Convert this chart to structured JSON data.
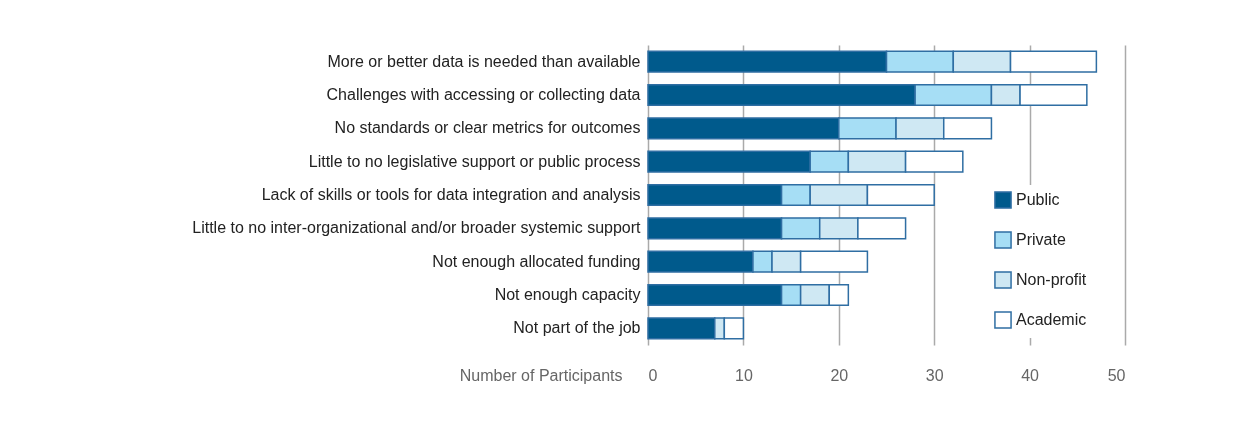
{
  "chart_data": {
    "type": "bar",
    "orientation": "horizontal",
    "stacked": true,
    "categories": [
      "More or better data is needed than available",
      "Challenges with accessing or collecting data",
      "No standards or clear metrics for outcomes",
      "Little to no legislative support or public process",
      "Lack of skills or tools for data integration and analysis",
      "Little to no inter-organizational and/or broader systemic support",
      "Not enough allocated funding",
      "Not enough capacity",
      "Not part of the job"
    ],
    "series": [
      {
        "name": "Public",
        "color": "#005a8c",
        "values": [
          25,
          28,
          20,
          17,
          14,
          14,
          11,
          14,
          7
        ]
      },
      {
        "name": "Private",
        "color": "#a6def5",
        "values": [
          7,
          8,
          6,
          4,
          3,
          4,
          2,
          2,
          0
        ]
      },
      {
        "name": "Non-profit",
        "color": "#cfe8f3",
        "values": [
          6,
          3,
          5,
          6,
          6,
          4,
          3,
          3,
          1
        ]
      },
      {
        "name": "Academic",
        "color": "#ffffff",
        "values": [
          9,
          7,
          5,
          6,
          7,
          5,
          7,
          2,
          2
        ]
      }
    ],
    "xlabel": "Number of Participants",
    "xlim": [
      0,
      50
    ],
    "xticks": [
      0,
      10,
      20,
      30,
      40,
      50
    ],
    "grid": "x",
    "legend": "right"
  }
}
